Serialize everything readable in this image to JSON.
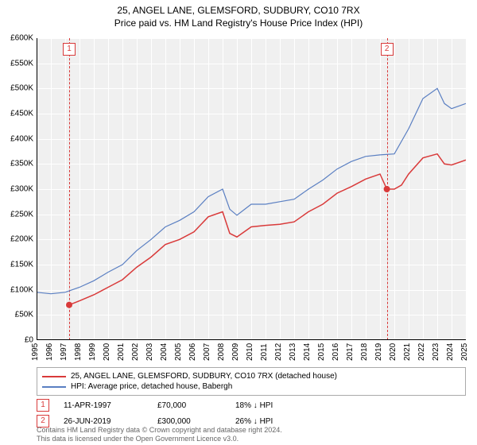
{
  "title_line1": "25, ANGEL LANE, GLEMSFORD, SUDBURY, CO10 7RX",
  "title_line2": "Price paid vs. HM Land Registry's House Price Index (HPI)",
  "chart": {
    "type": "line",
    "background_color": "#f0f0f0",
    "grid_color": "#ffffff",
    "xlim": [
      1995,
      2025
    ],
    "ylim": [
      0,
      600000
    ],
    "ytick_step": 50000,
    "y_ticks": [
      "£0",
      "£50K",
      "£100K",
      "£150K",
      "£200K",
      "£250K",
      "£300K",
      "£350K",
      "£400K",
      "£450K",
      "£500K",
      "£550K",
      "£600K"
    ],
    "x_ticks": [
      "1995",
      "1996",
      "1997",
      "1998",
      "1999",
      "2000",
      "2001",
      "2002",
      "2003",
      "2004",
      "2005",
      "2006",
      "2007",
      "2008",
      "2009",
      "2010",
      "2011",
      "2012",
      "2013",
      "2014",
      "2015",
      "2016",
      "2017",
      "2018",
      "2019",
      "2020",
      "2021",
      "2022",
      "2023",
      "2024",
      "2025"
    ],
    "series": [
      {
        "name": "hpi",
        "label": "HPI: Average price, detached house, Babergh",
        "color": "#5a7fc2",
        "line_width": 1.2,
        "points": [
          [
            1995,
            95000
          ],
          [
            1996,
            92000
          ],
          [
            1997,
            95000
          ],
          [
            1998,
            105000
          ],
          [
            1999,
            118000
          ],
          [
            2000,
            135000
          ],
          [
            2001,
            150000
          ],
          [
            2002,
            178000
          ],
          [
            2003,
            200000
          ],
          [
            2004,
            225000
          ],
          [
            2005,
            238000
          ],
          [
            2006,
            255000
          ],
          [
            2007,
            285000
          ],
          [
            2008,
            300000
          ],
          [
            2008.5,
            260000
          ],
          [
            2009,
            248000
          ],
          [
            2010,
            270000
          ],
          [
            2011,
            270000
          ],
          [
            2012,
            275000
          ],
          [
            2013,
            280000
          ],
          [
            2014,
            300000
          ],
          [
            2015,
            318000
          ],
          [
            2016,
            340000
          ],
          [
            2017,
            355000
          ],
          [
            2018,
            365000
          ],
          [
            2019,
            368000
          ],
          [
            2020,
            370000
          ],
          [
            2021,
            420000
          ],
          [
            2022,
            480000
          ],
          [
            2023,
            500000
          ],
          [
            2023.5,
            470000
          ],
          [
            2024,
            460000
          ],
          [
            2025,
            470000
          ]
        ]
      },
      {
        "name": "price_paid",
        "label": "25, ANGEL LANE, GLEMSFORD, SUDBURY, CO10 7RX (detached house)",
        "color": "#d93a3a",
        "line_width": 1.5,
        "points": [
          [
            1997.28,
            70000
          ],
          [
            1998,
            78000
          ],
          [
            1999,
            90000
          ],
          [
            2000,
            105000
          ],
          [
            2001,
            120000
          ],
          [
            2002,
            145000
          ],
          [
            2003,
            165000
          ],
          [
            2004,
            190000
          ],
          [
            2005,
            200000
          ],
          [
            2006,
            215000
          ],
          [
            2007,
            245000
          ],
          [
            2008,
            255000
          ],
          [
            2008.5,
            212000
          ],
          [
            2009,
            205000
          ],
          [
            2010,
            225000
          ],
          [
            2011,
            228000
          ],
          [
            2012,
            230000
          ],
          [
            2013,
            235000
          ],
          [
            2014,
            255000
          ],
          [
            2015,
            270000
          ],
          [
            2016,
            292000
          ],
          [
            2017,
            305000
          ],
          [
            2018,
            320000
          ],
          [
            2019,
            330000
          ],
          [
            2019.48,
            300000
          ],
          [
            2020,
            300000
          ],
          [
            2020.5,
            308000
          ],
          [
            2021,
            330000
          ],
          [
            2022,
            362000
          ],
          [
            2023,
            370000
          ],
          [
            2023.5,
            350000
          ],
          [
            2024,
            348000
          ],
          [
            2025,
            358000
          ]
        ]
      }
    ],
    "event_lines": [
      {
        "x": 1997.28,
        "label": "1"
      },
      {
        "x": 2019.48,
        "label": "2"
      }
    ],
    "event_markers": [
      {
        "x": 1997.28,
        "y": 70000
      },
      {
        "x": 2019.48,
        "y": 300000
      }
    ],
    "title_fontsize": 12,
    "axis_fontsize": 10,
    "event_line_color": "#d93a3a"
  },
  "legend": {
    "rows": [
      {
        "color": "#d93a3a",
        "label": "25, ANGEL LANE, GLEMSFORD, SUDBURY, CO10 7RX (detached house)"
      },
      {
        "color": "#5a7fc2",
        "label": "HPI: Average price, detached house, Babergh"
      }
    ]
  },
  "events": [
    {
      "num": "1",
      "date": "11-APR-1997",
      "price": "£70,000",
      "diff": "18% ↓ HPI"
    },
    {
      "num": "2",
      "date": "26-JUN-2019",
      "price": "£300,000",
      "diff": "26% ↓ HPI"
    }
  ],
  "footnote_line1": "Contains HM Land Registry data © Crown copyright and database right 2024.",
  "footnote_line2": "This data is licensed under the Open Government Licence v3.0."
}
